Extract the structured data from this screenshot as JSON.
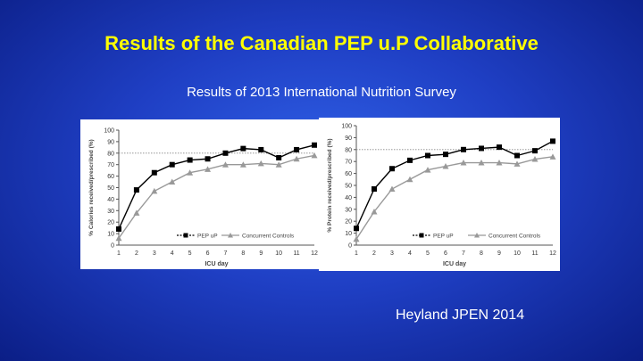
{
  "slide": {
    "title": "Results of the Canadian PEP u.P Collaborative",
    "subtitle": "Results of 2013 International Nutrition Survey",
    "citation": "Heyland JPEN 2014"
  },
  "colors": {
    "background": "#1f3fc4",
    "title": "#ffff00",
    "text": "#ffffff",
    "pepup": "#000000",
    "controls": "#999999",
    "reference_line": "#888888"
  },
  "chart_data": [
    {
      "type": "line",
      "ylabel": "% Calories received/prescribed (%)",
      "xlabel": "ICU day",
      "x": [
        1,
        2,
        3,
        4,
        5,
        6,
        7,
        8,
        9,
        10,
        11,
        12
      ],
      "xticks": [
        "1",
        "2",
        "3",
        "4",
        "5",
        "6",
        "7",
        "8",
        "9",
        "10",
        "11",
        "12"
      ],
      "yticks": [
        "0",
        "10",
        "20",
        "30",
        "40",
        "50",
        "60",
        "70",
        "80",
        "90",
        "100"
      ],
      "ylim": [
        0,
        100
      ],
      "grid": false,
      "reference_line": 80,
      "legend_position": "bottom-right",
      "series": [
        {
          "name": "PEP uP",
          "marker": "square",
          "color": "#000000",
          "values": [
            14,
            48,
            63,
            70,
            74,
            75,
            80,
            84,
            83,
            76,
            83,
            87
          ]
        },
        {
          "name": "Concurrent Controls",
          "marker": "triangle",
          "color": "#999999",
          "values": [
            6,
            28,
            47,
            55,
            63,
            66,
            70,
            70,
            71,
            70,
            75,
            78
          ]
        }
      ]
    },
    {
      "type": "line",
      "ylabel": "% Protein received/prescribed (%)",
      "xlabel": "ICU day",
      "x": [
        1,
        2,
        3,
        4,
        5,
        6,
        7,
        8,
        9,
        10,
        11,
        12
      ],
      "xticks": [
        "1",
        "2",
        "3",
        "4",
        "5",
        "6",
        "7",
        "8",
        "9",
        "10",
        "11",
        "12"
      ],
      "yticks": [
        "0",
        "10",
        "20",
        "30",
        "40",
        "50",
        "60",
        "70",
        "80",
        "90",
        "100"
      ],
      "ylim": [
        0,
        100
      ],
      "grid": false,
      "reference_line": 80,
      "legend_position": "bottom-right",
      "series": [
        {
          "name": "PEP uP",
          "marker": "square",
          "color": "#000000",
          "values": [
            14,
            47,
            64,
            71,
            75,
            76,
            80,
            81,
            82,
            75,
            79,
            87
          ]
        },
        {
          "name": "Concurrent Controls",
          "marker": "triangle",
          "color": "#999999",
          "values": [
            5,
            28,
            47,
            55,
            63,
            66,
            69,
            69,
            69,
            68,
            72,
            74
          ]
        }
      ]
    }
  ]
}
